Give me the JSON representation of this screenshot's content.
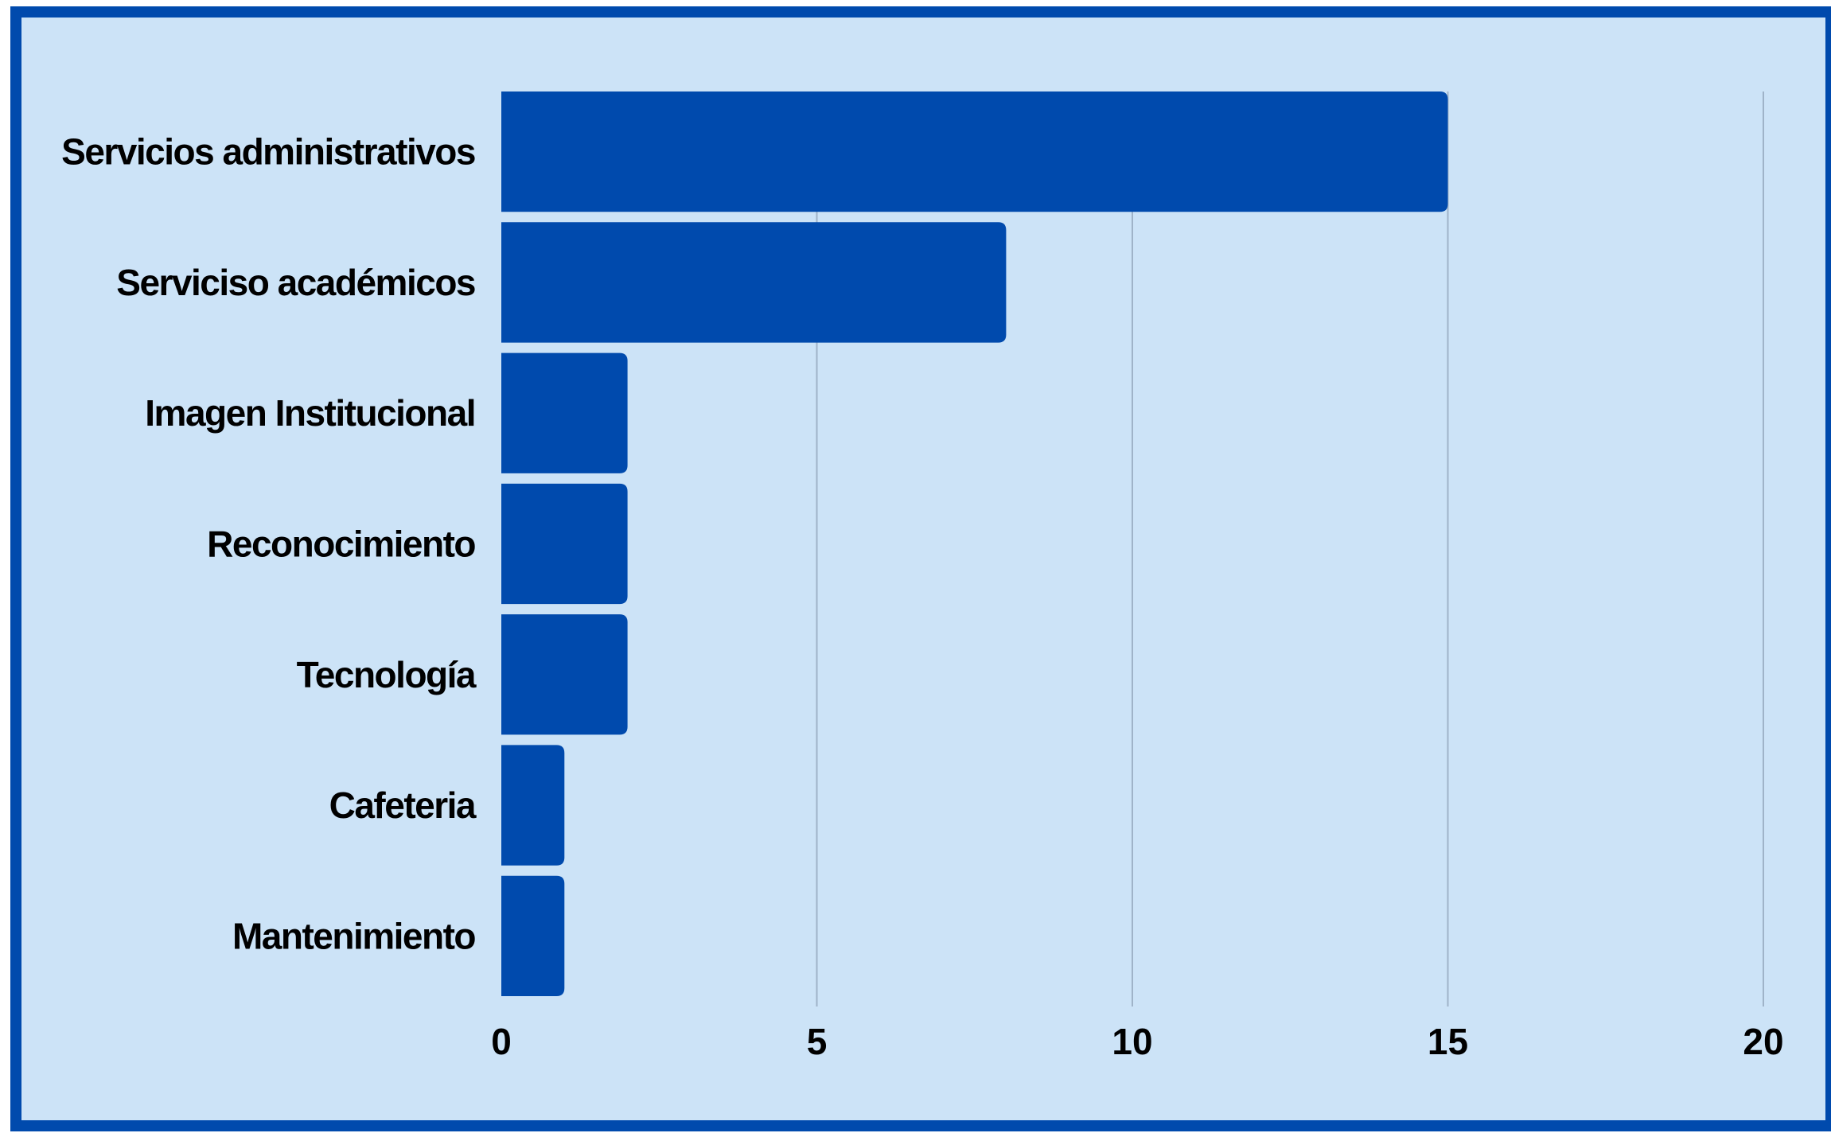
{
  "chart_data": {
    "type": "bar",
    "orientation": "horizontal",
    "title": "",
    "xlabel": "",
    "ylabel": "",
    "categories": [
      "Servicios administrativos",
      "Serviciso académicos",
      "Imagen Institucional",
      "Reconocimiento",
      "Tecnología",
      "Cafeteria",
      "Mantenimiento"
    ],
    "values": [
      15,
      8,
      2,
      2,
      2,
      1,
      1
    ],
    "xlim": [
      0,
      20
    ],
    "xticks": [
      "0",
      "5",
      "10",
      "15",
      "20"
    ],
    "grid": "vertical",
    "legend": "none"
  },
  "colors": {
    "background": "#cce3f7",
    "border": "#004aad",
    "bar": "#004aad",
    "gridline": "#9fb3c8",
    "text": "#000000"
  }
}
